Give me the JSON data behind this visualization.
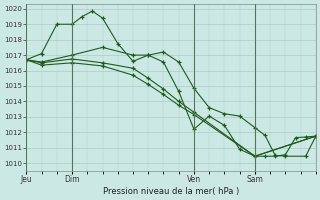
{
  "xlabel": "Pression niveau de la mer( hPa )",
  "ylim": [
    1010,
    1020
  ],
  "yticks": [
    1010,
    1011,
    1012,
    1013,
    1014,
    1015,
    1016,
    1017,
    1018,
    1019,
    1020
  ],
  "background_color": "#cce8e4",
  "grid_color": "#aaccc8",
  "line_color": "#1e5c1e",
  "xtick_labels": [
    "Jeu",
    "Dim",
    "Ven",
    "Sam"
  ],
  "xtick_positions": [
    0,
    18,
    66,
    90
  ],
  "xlim": [
    0,
    114
  ],
  "line1_x": [
    0,
    6,
    12,
    18,
    22,
    26,
    30,
    36,
    42,
    48,
    54,
    60,
    66,
    72,
    78,
    84,
    90,
    94,
    98,
    102,
    106,
    110,
    114
  ],
  "line1_y": [
    1016.7,
    1017.1,
    1019.0,
    1019.0,
    1019.5,
    1019.85,
    1019.4,
    1017.75,
    1016.6,
    1017.0,
    1016.55,
    1014.65,
    1012.2,
    1013.05,
    1012.45,
    1010.9,
    1010.45,
    1010.45,
    1010.45,
    1010.55,
    1011.65,
    1011.7,
    1011.75
  ],
  "line2_x": [
    0,
    6,
    18,
    30,
    42,
    48,
    54,
    60,
    66,
    72,
    78,
    84,
    90,
    94,
    98,
    102,
    110,
    114
  ],
  "line2_y": [
    1016.7,
    1016.55,
    1017.0,
    1017.5,
    1017.0,
    1017.0,
    1017.2,
    1016.55,
    1014.85,
    1013.6,
    1013.2,
    1013.05,
    1012.3,
    1011.8,
    1010.5,
    1010.45,
    1010.45,
    1011.75
  ],
  "line3_x": [
    0,
    6,
    18,
    30,
    42,
    48,
    54,
    60,
    66,
    90,
    114
  ],
  "line3_y": [
    1016.7,
    1016.5,
    1016.75,
    1016.5,
    1016.15,
    1015.5,
    1014.8,
    1014.0,
    1013.3,
    1010.45,
    1011.75
  ],
  "line4_x": [
    0,
    6,
    18,
    30,
    42,
    48,
    54,
    60,
    66,
    90,
    114
  ],
  "line4_y": [
    1016.7,
    1016.35,
    1016.5,
    1016.3,
    1015.7,
    1015.1,
    1014.45,
    1013.75,
    1013.15,
    1010.45,
    1011.75
  ]
}
